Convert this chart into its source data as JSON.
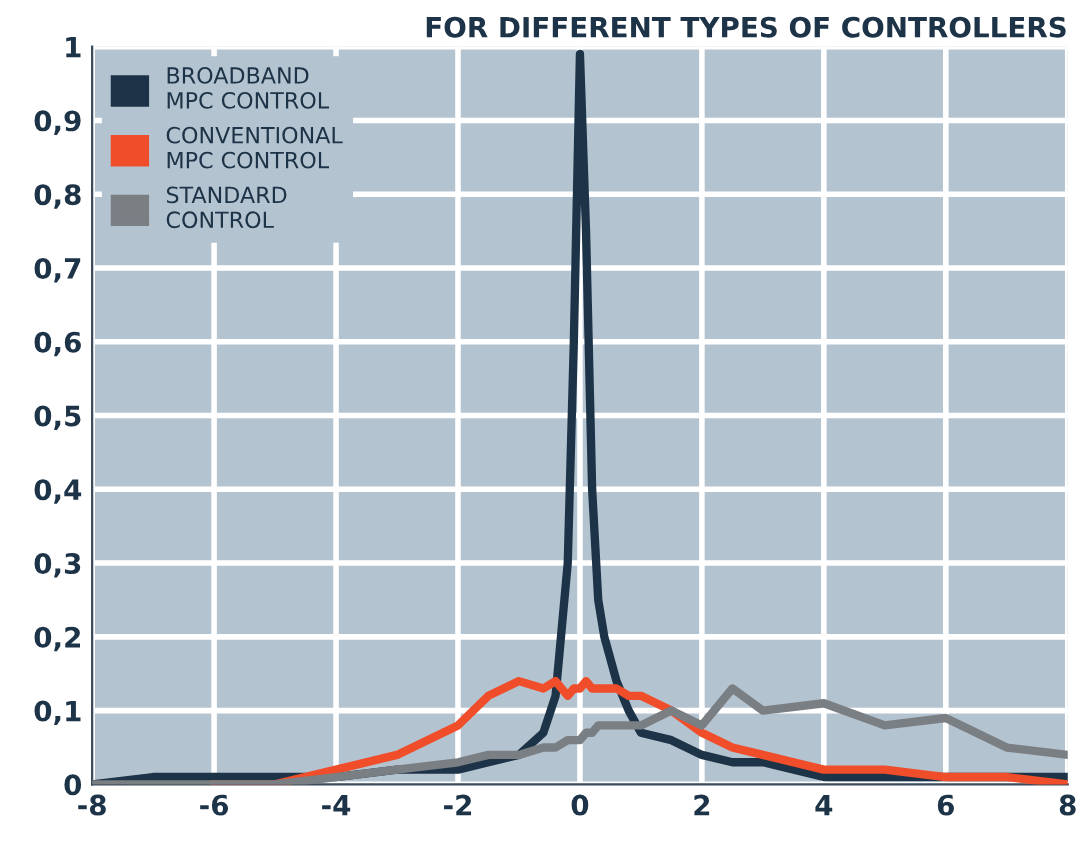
{
  "chart_data": {
    "type": "line",
    "title": "FOR DIFFERENT TYPES OF CONTROLLERS",
    "x": [
      -8,
      -7,
      -6,
      -5,
      -4,
      -3,
      -2,
      -1.5,
      -1,
      -0.6,
      -0.4,
      -0.2,
      -0.1,
      0,
      0.1,
      0.2,
      0.3,
      0.4,
      0.6,
      0.8,
      1,
      1.5,
      2,
      2.5,
      3,
      4,
      5,
      6,
      7,
      8
    ],
    "series": [
      {
        "name": "BROADBAND\nMPC CONTROL",
        "color": "#1d3347",
        "values": [
          0,
          0.01,
          0.01,
          0.01,
          0.01,
          0.02,
          0.02,
          0.03,
          0.04,
          0.07,
          0.12,
          0.3,
          0.6,
          0.99,
          0.75,
          0.4,
          0.25,
          0.2,
          0.14,
          0.1,
          0.07,
          0.06,
          0.04,
          0.03,
          0.03,
          0.01,
          0.01,
          0.01,
          0.01,
          0.01
        ]
      },
      {
        "name": "CONVENTIONAL\nMPC CONTROL",
        "color": "#f04e2b",
        "values": [
          null,
          null,
          0,
          0,
          0.02,
          0.04,
          0.08,
          0.12,
          0.14,
          0.13,
          0.14,
          0.12,
          0.13,
          0.13,
          0.14,
          0.13,
          0.13,
          0.13,
          0.13,
          0.12,
          0.12,
          0.1,
          0.07,
          0.05,
          0.04,
          0.02,
          0.02,
          0.01,
          0.01,
          0
        ]
      },
      {
        "name": "STANDARD\nCONTROL",
        "color": "#7a7f84",
        "values": [
          0,
          0,
          0,
          0,
          0.01,
          0.02,
          0.03,
          0.04,
          0.04,
          0.05,
          0.05,
          0.06,
          0.06,
          0.06,
          0.07,
          0.07,
          0.08,
          0.08,
          0.08,
          0.08,
          0.08,
          0.1,
          0.08,
          0.13,
          0.1,
          0.11,
          0.08,
          0.09,
          0.05,
          0.04
        ]
      }
    ],
    "xlim": [
      -8,
      8
    ],
    "ylim": [
      0,
      1
    ],
    "xticks": [
      -8,
      -6,
      -4,
      -2,
      0,
      2,
      4,
      6,
      8
    ],
    "yticks": [
      0,
      {
        "value": 0.1,
        "label": "0,1"
      },
      {
        "value": 0.2,
        "label": "0,2"
      },
      {
        "value": 0.3,
        "label": "0,3"
      },
      {
        "value": 0.4,
        "label": "0,4"
      },
      {
        "value": 0.5,
        "label": "0,5"
      },
      {
        "value": 0.6,
        "label": "0,6"
      },
      {
        "value": 0.7,
        "label": "0,7"
      },
      {
        "value": 0.8,
        "label": "0,8"
      },
      {
        "value": 0.9,
        "label": "0,9"
      },
      1
    ],
    "grid": true,
    "legend": "top left"
  }
}
